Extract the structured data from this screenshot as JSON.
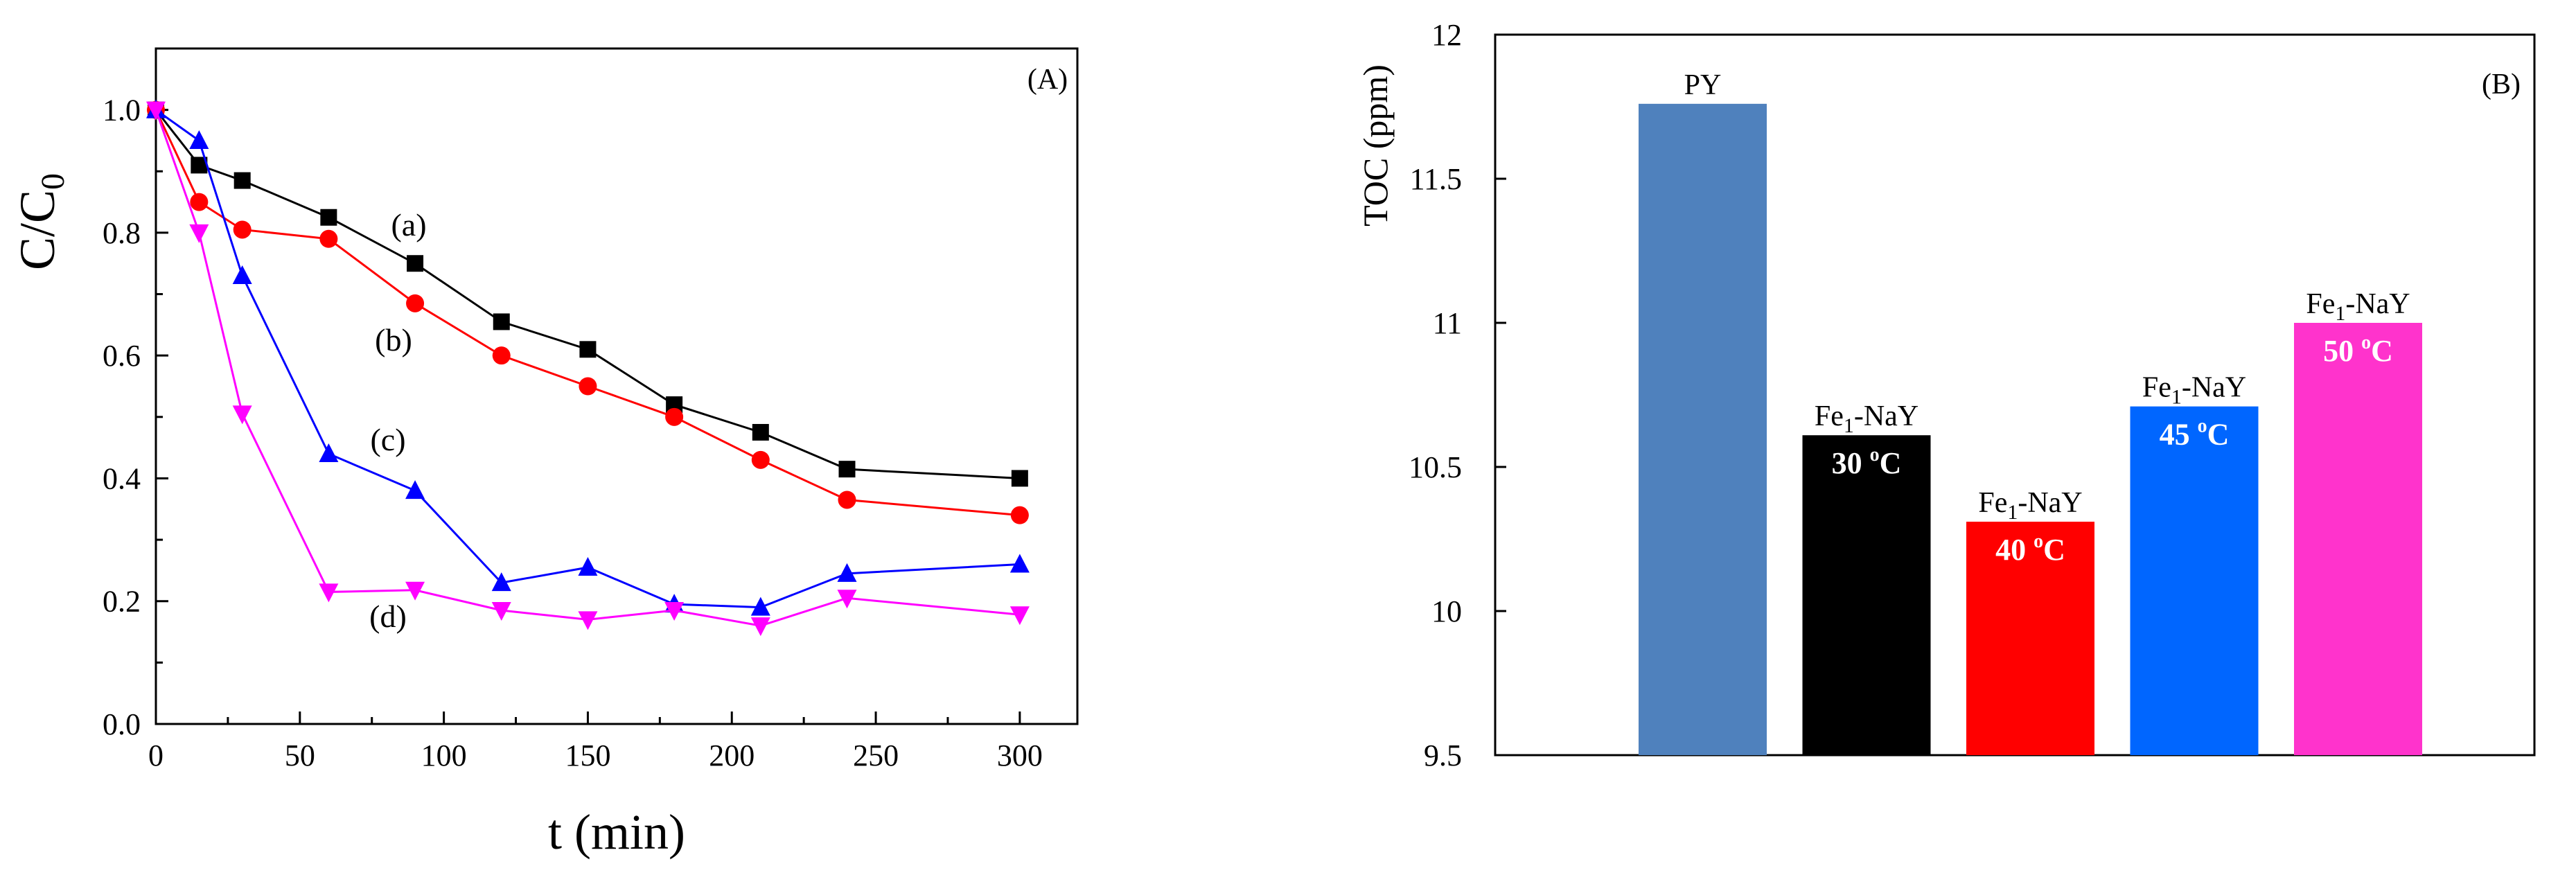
{
  "chart_data": [
    {
      "type": "line",
      "panel_label": "(A)",
      "xlabel": "t (min)",
      "ylabel_main": "C/C",
      "ylabel_sub": "0",
      "xlim": [
        0,
        320
      ],
      "ylim": [
        0,
        1.1
      ],
      "x_ticks": [
        0,
        50,
        100,
        150,
        200,
        250,
        300
      ],
      "y_ticks": [
        0.0,
        0.2,
        0.4,
        0.6,
        0.8,
        1.0
      ],
      "y_tick_labels": [
        "0.0",
        "0.2",
        "0.4",
        "0.6",
        "0.8",
        "1.0"
      ],
      "x": [
        0,
        15,
        30,
        60,
        90,
        120,
        150,
        180,
        210,
        240,
        300
      ],
      "series": [
        {
          "name": "(a)",
          "color": "#000000",
          "marker": "square",
          "values": [
            1.0,
            0.91,
            0.885,
            0.825,
            0.75,
            0.655,
            0.61,
            0.52,
            0.475,
            0.415,
            0.4
          ]
        },
        {
          "name": "(b)",
          "color": "#ff0000",
          "marker": "circle",
          "values": [
            1.0,
            0.85,
            0.805,
            0.79,
            0.685,
            0.6,
            0.55,
            0.5,
            0.43,
            0.365,
            0.34
          ]
        },
        {
          "name": "(c)",
          "color": "#0000ff",
          "marker": "triangle-up",
          "values": [
            1.0,
            0.95,
            0.73,
            0.44,
            0.38,
            0.23,
            0.255,
            0.195,
            0.19,
            0.245,
            0.26
          ]
        },
        {
          "name": "(d)",
          "color": "#ff00ff",
          "marker": "triangle-down",
          "values": [
            1.0,
            0.8,
            0.505,
            0.215,
            0.218,
            0.185,
            0.17,
            0.185,
            0.16,
            0.205,
            0.178
          ]
        }
      ]
    },
    {
      "type": "bar",
      "panel_label": "(B)",
      "ylabel": "TOC (ppm)",
      "ylim": [
        9.5,
        12
      ],
      "y_ticks": [
        9.5,
        10,
        10.5,
        11,
        11.5,
        12
      ],
      "y_tick_labels": [
        "9.5",
        "10",
        "10.5",
        "11",
        "11.5",
        "12"
      ],
      "bars": [
        {
          "label_main": "PY",
          "label_sub": "",
          "label_tail": "",
          "temp": "",
          "value": 11.76,
          "color": "#4f81bd"
        },
        {
          "label_main": "Fe",
          "label_sub": "1",
          "label_tail": "-NaY",
          "temp": "30 ºC",
          "value": 10.61,
          "color": "#000000"
        },
        {
          "label_main": "Fe",
          "label_sub": "1",
          "label_tail": "-NaY",
          "temp": "40 ºC",
          "value": 10.31,
          "color": "#ff0000"
        },
        {
          "label_main": "Fe",
          "label_sub": "1",
          "label_tail": "-NaY",
          "temp": "45 ºC",
          "value": 10.71,
          "color": "#0066ff"
        },
        {
          "label_main": "Fe",
          "label_sub": "1",
          "label_tail": "-NaY",
          "temp": "50 ºC",
          "value": 11.0,
          "color": "#ff33cc"
        }
      ]
    }
  ]
}
